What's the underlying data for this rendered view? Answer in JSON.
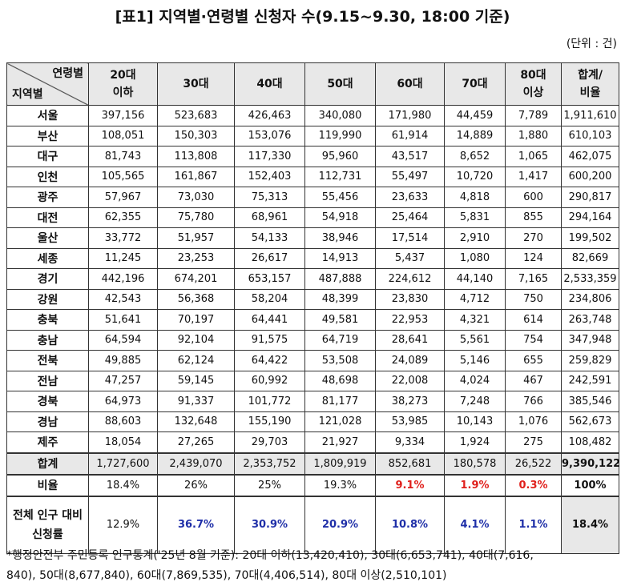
{
  "title": "[표1] 지역별·연령별 신청자 수(9.15~9.30, 18:00 기준)",
  "unit": "(단위 : 건)",
  "table": {
    "corner": {
      "top": "연령별",
      "bottom": "지역별"
    },
    "columns": [
      [
        "20대",
        "이하"
      ],
      [
        "30대"
      ],
      [
        "40대"
      ],
      [
        "50대"
      ],
      [
        "60대"
      ],
      [
        "70대"
      ],
      [
        "80대",
        "이상"
      ],
      [
        "합계/",
        "비율"
      ]
    ],
    "rows": [
      {
        "label": [
          "서울"
        ],
        "cells": [
          "397,156",
          "523,683",
          "426,463",
          "340,080",
          "171,980",
          "44,459",
          "7,789",
          "1,911,610"
        ]
      },
      {
        "label": [
          "부산"
        ],
        "cells": [
          "108,051",
          "150,303",
          "153,076",
          "119,990",
          "61,914",
          "14,889",
          "1,880",
          "610,103"
        ]
      },
      {
        "label": [
          "대구"
        ],
        "cells": [
          "81,743",
          "113,808",
          "117,330",
          "95,960",
          "43,517",
          "8,652",
          "1,065",
          "462,075"
        ]
      },
      {
        "label": [
          "인천"
        ],
        "cells": [
          "105,565",
          "161,867",
          "152,403",
          "112,731",
          "55,497",
          "10,720",
          "1,417",
          "600,200"
        ]
      },
      {
        "label": [
          "광주"
        ],
        "cells": [
          "57,967",
          "73,030",
          "75,313",
          "55,456",
          "23,633",
          "4,818",
          "600",
          "290,817"
        ]
      },
      {
        "label": [
          "대전"
        ],
        "cells": [
          "62,355",
          "75,780",
          "68,961",
          "54,918",
          "25,464",
          "5,831",
          "855",
          "294,164"
        ]
      },
      {
        "label": [
          "울산"
        ],
        "cells": [
          "33,772",
          "51,957",
          "54,133",
          "38,946",
          "17,514",
          "2,910",
          "270",
          "199,502"
        ]
      },
      {
        "label": [
          "세종"
        ],
        "cells": [
          "11,245",
          "23,253",
          "26,617",
          "14,913",
          "5,437",
          "1,080",
          "124",
          "82,669"
        ]
      },
      {
        "label": [
          "경기"
        ],
        "cells": [
          "442,196",
          "674,201",
          "653,157",
          "487,888",
          "224,612",
          "44,140",
          "7,165",
          "2,533,359"
        ]
      },
      {
        "label": [
          "강원"
        ],
        "cells": [
          "42,543",
          "56,368",
          "58,204",
          "48,399",
          "23,830",
          "4,712",
          "750",
          "234,806"
        ]
      },
      {
        "label": [
          "충북"
        ],
        "cells": [
          "51,641",
          "70,197",
          "64,441",
          "49,581",
          "22,953",
          "4,321",
          "614",
          "263,748"
        ]
      },
      {
        "label": [
          "충남"
        ],
        "cells": [
          "64,594",
          "92,104",
          "91,575",
          "64,719",
          "28,641",
          "5,561",
          "754",
          "347,948"
        ]
      },
      {
        "label": [
          "전북"
        ],
        "cells": [
          "49,885",
          "62,124",
          "64,422",
          "53,508",
          "24,089",
          "5,146",
          "655",
          "259,829"
        ]
      },
      {
        "label": [
          "전남"
        ],
        "cells": [
          "47,257",
          "59,145",
          "60,992",
          "48,698",
          "22,008",
          "4,024",
          "467",
          "242,591"
        ]
      },
      {
        "label": [
          "경북"
        ],
        "cells": [
          "64,973",
          "91,337",
          "101,772",
          "81,177",
          "38,273",
          "7,248",
          "766",
          "385,546"
        ]
      },
      {
        "label": [
          "경남"
        ],
        "cells": [
          "88,603",
          "132,648",
          "155,190",
          "121,028",
          "53,985",
          "10,143",
          "1,076",
          "562,673"
        ]
      },
      {
        "label": [
          "제주"
        ],
        "cells": [
          "18,054",
          "27,265",
          "29,703",
          "21,927",
          "9,334",
          "1,924",
          "275",
          "108,482"
        ]
      },
      {
        "label": [
          "합계"
        ],
        "cells": [
          "1,727,600",
          "2,439,070",
          "2,353,752",
          "1,809,919",
          "852,681",
          "180,578",
          "26,522",
          "9,390,122"
        ]
      },
      {
        "label": [
          "비율"
        ],
        "cells": [
          "18.4%",
          "26%",
          "25%",
          "19.3%",
          "9.1%",
          "1.9%",
          "0.3%",
          "100%"
        ]
      },
      {
        "label": [
          "전체 인구 대비",
          "신청률"
        ],
        "cells": [
          "12.9%",
          "36.7%",
          "30.9%",
          "20.9%",
          "10.8%",
          "4.1%",
          "1.1%",
          "18.4%"
        ]
      }
    ]
  },
  "footnote": [
    "*행정안전부 주민등록 인구통계('25년 8월 기준): 20대 이하(13,420,410), 30대(6,653,741), 40대(7,616,",
    "840), 50대(8,677,840), 60대(7,869,535), 70대(4,406,514), 80대 이상(2,510,101)"
  ]
}
